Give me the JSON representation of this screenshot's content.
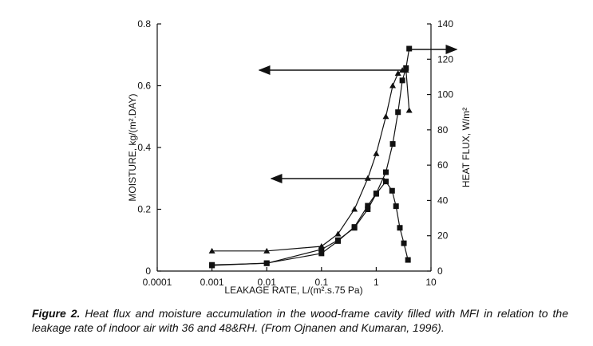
{
  "chart_data": {
    "type": "line",
    "xlabel": "LEAKAGE RATE, L/(m².s.75 Pa)",
    "ylabel": "MOISTURE, kg/(m².DAY)",
    "y2label": "HEAT FLUX, W/m²",
    "xscale": "log",
    "xlim": [
      0.0001,
      10
    ],
    "xticks": [
      0.0001,
      0.001,
      0.01,
      0.1,
      1,
      10
    ],
    "ylim": [
      0,
      0.8
    ],
    "yticks": [
      0,
      0.2,
      0.4,
      0.6,
      0.8
    ],
    "y2lim": [
      0,
      140
    ],
    "y2ticks": [
      0,
      20,
      40,
      60,
      80,
      100,
      120,
      140
    ],
    "series": [
      {
        "marker": "triangle",
        "color": "#111111",
        "x": [
          0.001,
          0.01,
          0.1,
          0.2,
          0.4,
          0.7,
          1.0,
          1.5,
          2.0,
          2.5,
          3.0,
          3.5,
          4.0
        ],
        "values": [
          0.065,
          0.065,
          0.08,
          0.12,
          0.2,
          0.3,
          0.38,
          0.5,
          0.6,
          0.64,
          0.65,
          0.65,
          0.52
        ]
      },
      {
        "marker": "square",
        "color": "#111111",
        "x": [
          0.001,
          0.01,
          0.1,
          0.2,
          0.4,
          0.7,
          1.0,
          1.5,
          1.95,
          2.3,
          2.7,
          3.2,
          3.8
        ],
        "values": [
          0.02,
          0.025,
          0.07,
          0.1,
          0.14,
          0.2,
          0.25,
          0.29,
          0.26,
          0.21,
          0.14,
          0.09,
          0.036
        ]
      },
      {
        "marker": "square",
        "color": "#111111",
        "axis": "y2",
        "x": [
          0.001,
          0.01,
          0.1,
          0.2,
          0.4,
          0.7,
          1.0,
          1.5,
          2.0,
          2.5,
          3.0,
          3.5,
          4.0
        ],
        "values": [
          3.2,
          4.5,
          10,
          17,
          25,
          37,
          44,
          56,
          72,
          90,
          108,
          115,
          126
        ]
      }
    ]
  },
  "caption": {
    "label": "Figure 2.",
    "text": "Heat flux and moisture accumulation in the wood-frame cavity filled with MFI in relation to the leakage rate of indoor air with 36 and 48&RH. (From Ojnanen and Kumaran, 1996)."
  }
}
